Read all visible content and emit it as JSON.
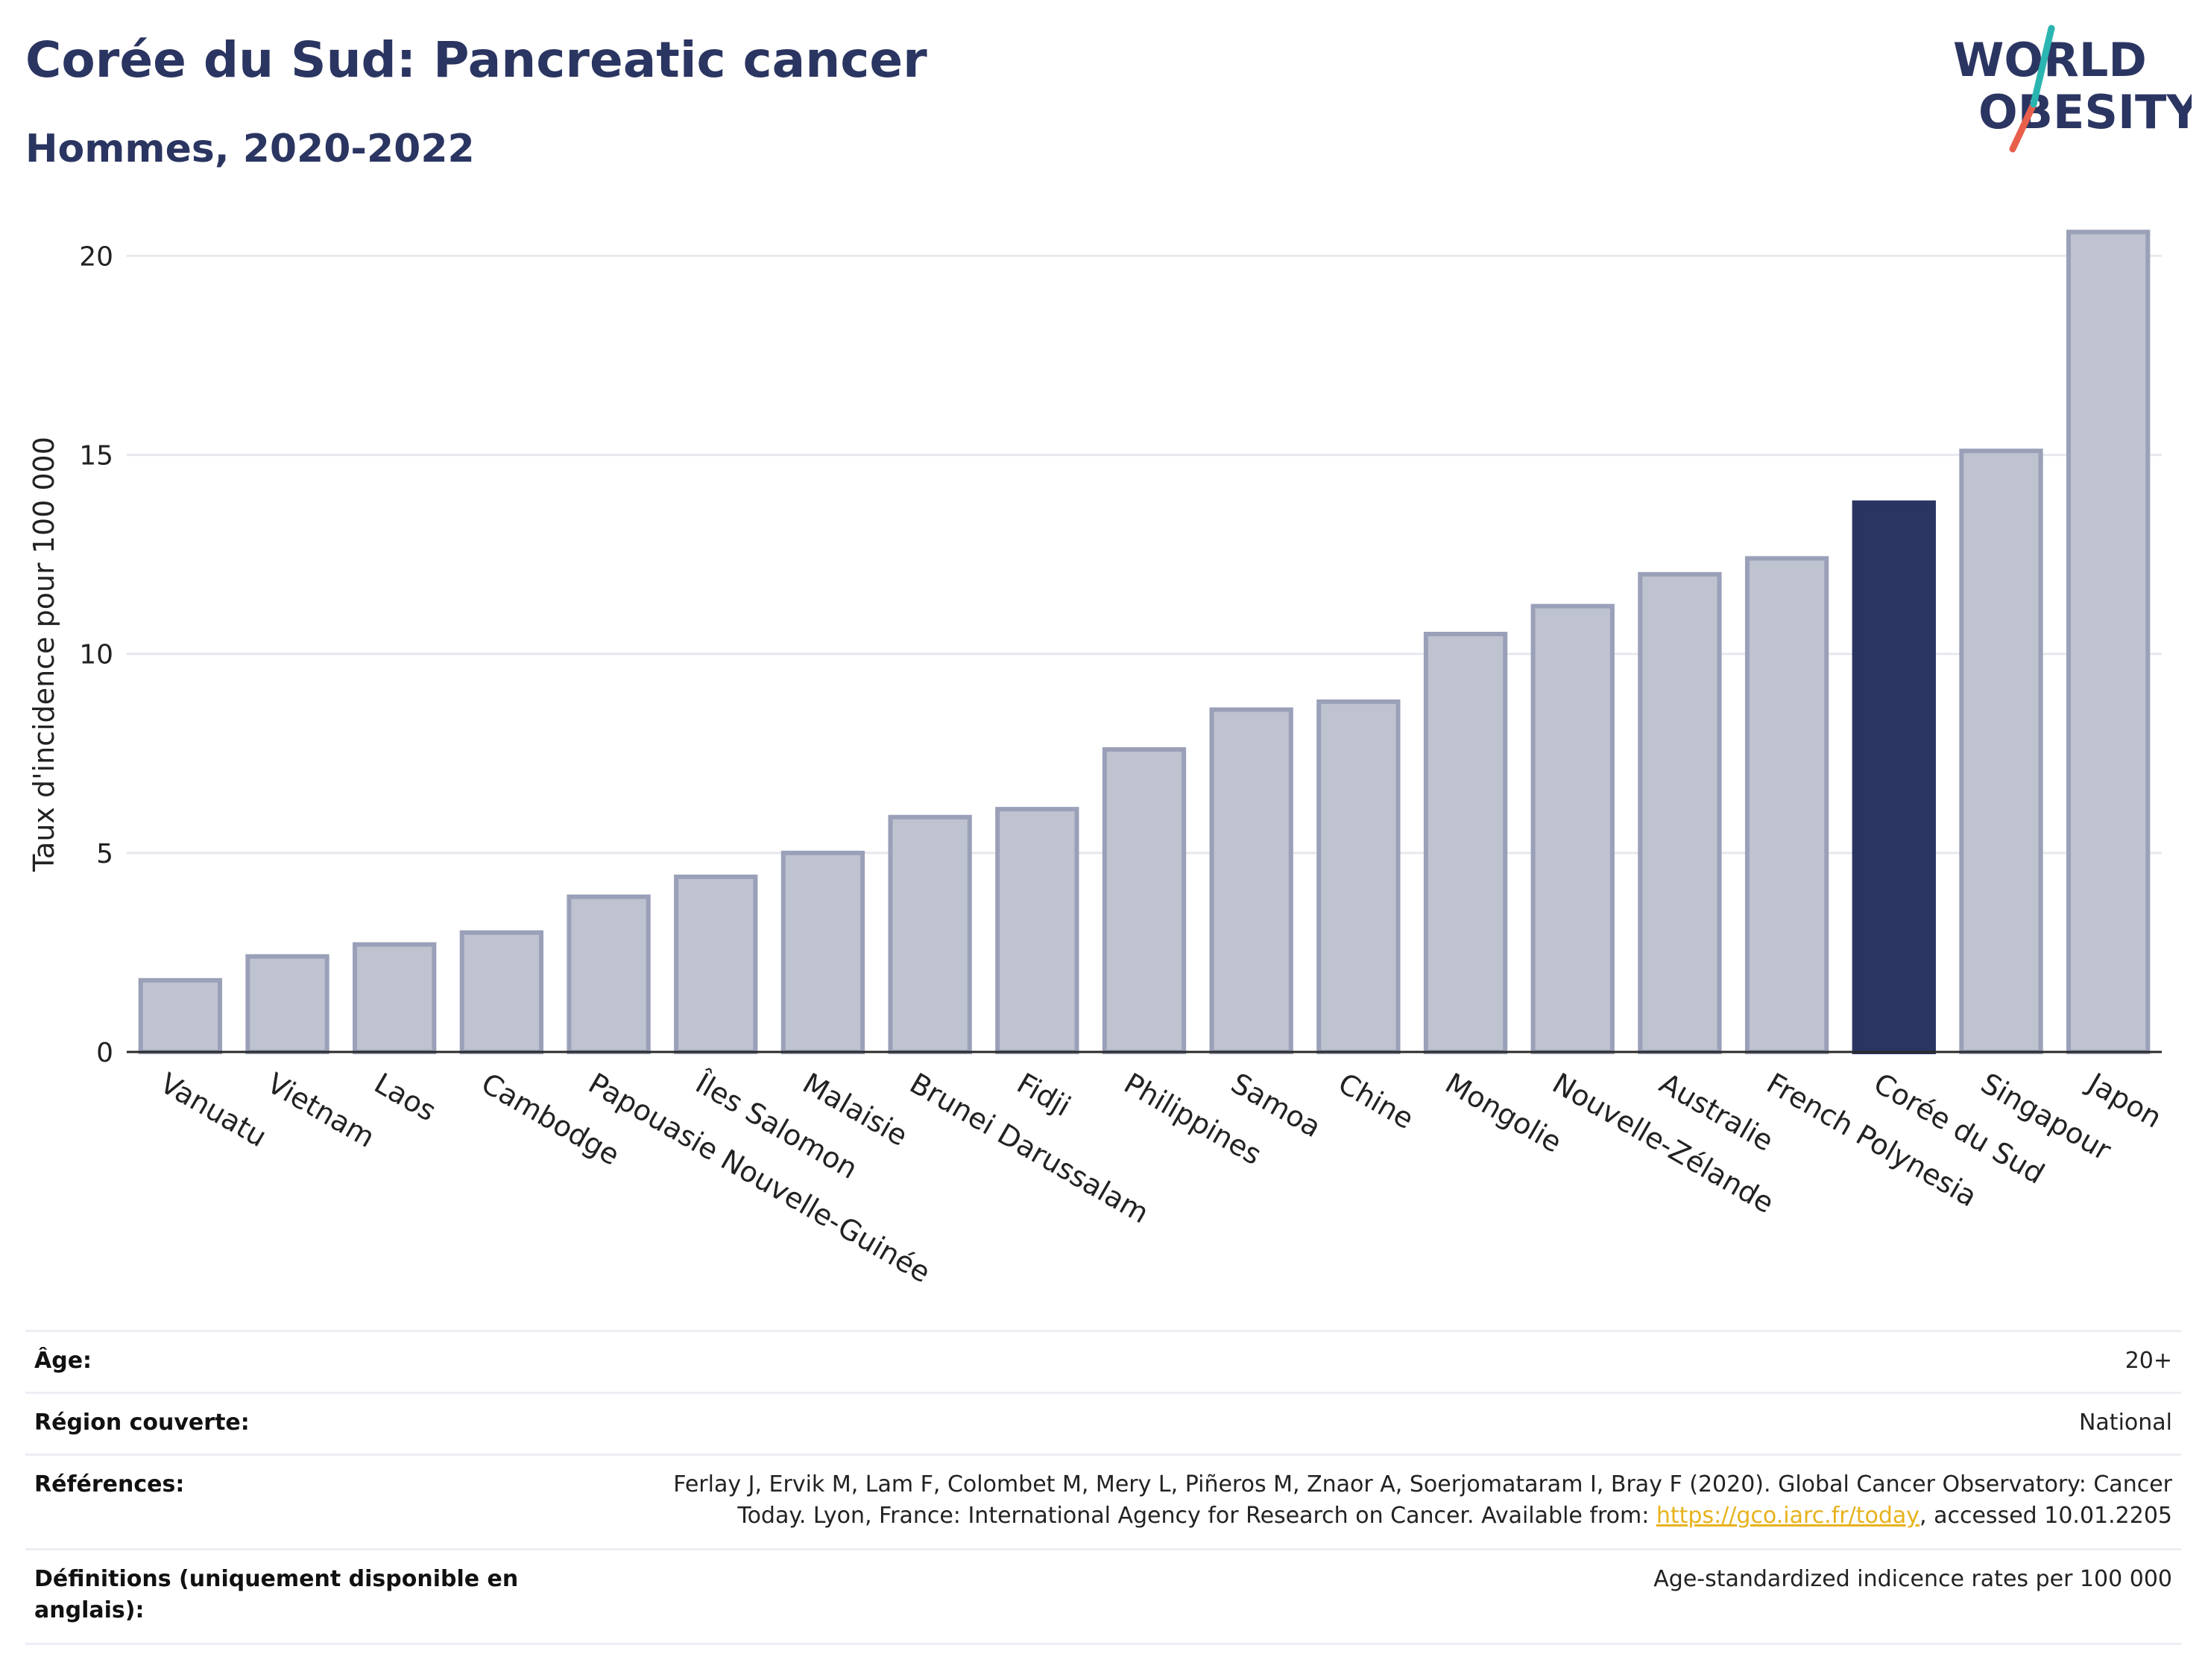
{
  "title": "Corée du Sud: Pancreatic cancer",
  "subtitle": "Hommes, 2020-2022",
  "logo": {
    "line1": "WORLD",
    "line2": "OBESITY",
    "accent_teal": "#2bb5b0",
    "accent_red": "#e8604c"
  },
  "colors": {
    "bar": "#bfc2cf",
    "bar_border": "#9aa0b8",
    "highlight": "#2b3561",
    "grid": "#e6e8ee",
    "axis": "#2a2a2a"
  },
  "chart_data": {
    "type": "bar",
    "ylabel": "Taux d'incidence pour 100 000",
    "ylim": [
      0,
      21
    ],
    "yticks": [
      0,
      5,
      10,
      15,
      20
    ],
    "grid": true,
    "highlight": "Corée du Sud",
    "categories": [
      "Vanuatu",
      "Vietnam",
      "Laos",
      "Cambodge",
      "Papouasie Nouvelle-Guinée",
      "Îles Salomon",
      "Malaisie",
      "Brunei Darussalam",
      "Fidji",
      "Philippines",
      "Samoa",
      "Chine",
      "Mongolie",
      "Nouvelle-Zélande",
      "Australie",
      "French Polynesia",
      "Corée du Sud",
      "Singapour",
      "Japon"
    ],
    "values": [
      1.8,
      2.4,
      2.7,
      3.0,
      3.9,
      4.4,
      5.0,
      5.9,
      6.1,
      7.6,
      8.6,
      8.8,
      10.5,
      11.2,
      12.0,
      12.4,
      13.8,
      15.1,
      20.6
    ]
  },
  "meta": [
    {
      "label": "Âge:",
      "value": "20+"
    },
    {
      "label": "Région couverte:",
      "value": "National"
    },
    {
      "label": "Références:",
      "value_line1": "Ferlay J, Ervik M, Lam F, Colombet M, Mery L, Piñeros M, Znaor A, Soerjomataram I, Bray F (2020). Global Cancer Observatory: Cancer",
      "value_line2_pre": "Today. Lyon, France: International Agency for Research on Cancer. Available from: ",
      "link": "https://gco.iarc.fr/today",
      "value_line2_post": ", accessed 10.01.2205"
    },
    {
      "label_line1": "Définitions (uniquement disponible en",
      "label_line2": "anglais):",
      "value": "Age-standardized indicence rates per 100 000"
    }
  ]
}
